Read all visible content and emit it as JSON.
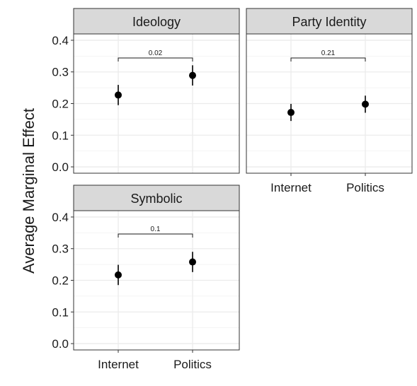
{
  "chart_data": {
    "type": "scatter",
    "ylabel": "Average Marginal Effect",
    "ylim": [
      -0.02,
      0.42
    ],
    "yticks": [
      0.0,
      0.1,
      0.2,
      0.3,
      0.4
    ],
    "ytick_labels": [
      "0.0",
      "0.1",
      "0.2",
      "0.3",
      "0.4"
    ],
    "categories": [
      "Internet",
      "Politics"
    ],
    "grid": true,
    "panels": [
      {
        "title": "Ideology",
        "points": [
          {
            "x": "Internet",
            "y": 0.227,
            "low": 0.195,
            "high": 0.259
          },
          {
            "x": "Politics",
            "y": 0.289,
            "low": 0.257,
            "high": 0.321
          }
        ],
        "comparison_label": "0.02",
        "show_x_labels": false
      },
      {
        "title": "Party Identity",
        "points": [
          {
            "x": "Internet",
            "y": 0.172,
            "low": 0.145,
            "high": 0.199
          },
          {
            "x": "Politics",
            "y": 0.198,
            "low": 0.171,
            "high": 0.225
          }
        ],
        "comparison_label": "0.21",
        "show_x_labels": true
      },
      {
        "title": "Symbolic",
        "points": [
          {
            "x": "Internet",
            "y": 0.217,
            "low": 0.185,
            "high": 0.249
          },
          {
            "x": "Politics",
            "y": 0.258,
            "low": 0.226,
            "high": 0.29
          }
        ],
        "comparison_label": "0.1",
        "show_x_labels": true
      }
    ]
  }
}
